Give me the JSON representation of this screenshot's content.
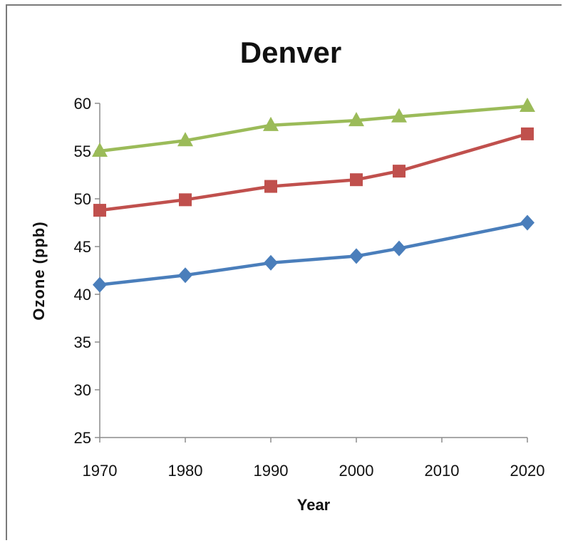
{
  "chart_data": {
    "type": "line",
    "title": "Denver",
    "xlabel": "Year",
    "ylabel": "Ozone (ppb)",
    "xlim": [
      1970,
      2020
    ],
    "ylim": [
      25,
      60
    ],
    "xticks": [
      1970,
      1980,
      1990,
      2000,
      2010,
      2020
    ],
    "yticks": [
      25,
      30,
      35,
      40,
      45,
      50,
      55,
      60
    ],
    "grid": false,
    "legend": "none",
    "series": [
      {
        "color": "#4a7ebb",
        "marker": "diamond",
        "x": [
          1970,
          1980,
          1990,
          2000,
          2005,
          2020
        ],
        "values": [
          41.0,
          42.0,
          43.3,
          44.0,
          44.8,
          47.5
        ]
      },
      {
        "color": "#c0504d",
        "marker": "square",
        "x": [
          1970,
          1980,
          1990,
          2000,
          2005,
          2020
        ],
        "values": [
          48.8,
          49.9,
          51.3,
          52.0,
          52.9,
          56.8
        ]
      },
      {
        "color": "#9bbb59",
        "marker": "triangle",
        "x": [
          1970,
          1980,
          1990,
          2000,
          2005,
          2020
        ],
        "values": [
          55.0,
          56.1,
          57.7,
          58.2,
          58.6,
          59.7
        ]
      }
    ]
  }
}
